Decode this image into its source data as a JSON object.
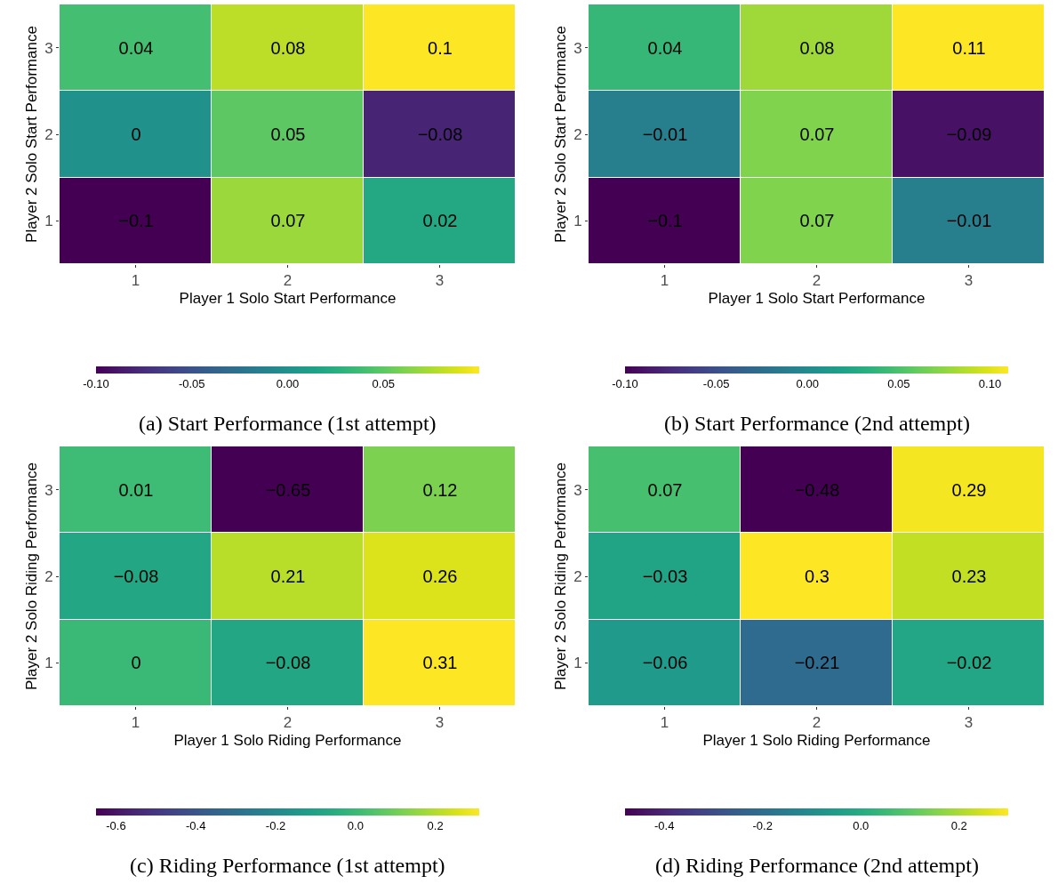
{
  "chart_data": [
    {
      "type": "heatmap",
      "xlabel": "Player 1 Solo Start Performance",
      "ylabel": "Player 2 Solo Start Performance",
      "categories": [
        "1",
        "2",
        "3"
      ],
      "y_categories": [
        "3",
        "2",
        "1"
      ],
      "cells": [
        [
          0.04,
          0.08,
          0.1
        ],
        [
          0,
          0.05,
          -0.08
        ],
        [
          -0.1,
          0.07,
          0.02
        ]
      ],
      "data_labels": true,
      "clim": [
        -0.1,
        0.1
      ],
      "cticks": [
        {
          "value": -0.1,
          "label": "-0.10"
        },
        {
          "value": -0.05,
          "label": "-0.05"
        },
        {
          "value": 0,
          "label": "0.00"
        },
        {
          "value": 0.05,
          "label": "0.05"
        }
      ],
      "grid": false,
      "annotations": [
        "(a) Start Performance (1st attempt)"
      ]
    },
    {
      "type": "heatmap",
      "xlabel": "Player 1 Solo Start Performance",
      "ylabel": "Player 2 Solo Start Performance",
      "categories": [
        "1",
        "2",
        "3"
      ],
      "y_categories": [
        "3",
        "2",
        "1"
      ],
      "cells": [
        [
          0.04,
          0.08,
          0.11
        ],
        [
          -0.01,
          0.07,
          -0.09
        ],
        [
          -0.1,
          0.07,
          -0.01
        ]
      ],
      "data_labels": true,
      "clim": [
        -0.1,
        0.11
      ],
      "cticks": [
        {
          "value": -0.1,
          "label": "-0.10"
        },
        {
          "value": -0.05,
          "label": "-0.05"
        },
        {
          "value": 0,
          "label": "0.00"
        },
        {
          "value": 0.05,
          "label": "0.05"
        },
        {
          "value": 0.1,
          "label": "0.10"
        }
      ],
      "grid": false,
      "annotations": [
        "(b) Start Performance (2nd attempt)"
      ]
    },
    {
      "type": "heatmap",
      "xlabel": "Player 1 Solo Riding Performance",
      "ylabel": "Player 2 Solo Riding Performance",
      "categories": [
        "1",
        "2",
        "3"
      ],
      "y_categories": [
        "3",
        "2",
        "1"
      ],
      "cells": [
        [
          0.01,
          -0.65,
          0.12
        ],
        [
          -0.08,
          0.21,
          0.26
        ],
        [
          0,
          -0.08,
          0.31
        ]
      ],
      "data_labels": true,
      "clim": [
        -0.65,
        0.31
      ],
      "cticks": [
        {
          "value": -0.6,
          "label": "-0.6"
        },
        {
          "value": -0.4,
          "label": "-0.4"
        },
        {
          "value": -0.2,
          "label": "-0.2"
        },
        {
          "value": 0,
          "label": "0.0"
        },
        {
          "value": 0.2,
          "label": "0.2"
        }
      ],
      "grid": false,
      "annotations": [
        "(c) Riding Performance (1st attempt)"
      ]
    },
    {
      "type": "heatmap",
      "xlabel": "Player 1 Solo Riding Performance",
      "ylabel": "Player 2 Solo Riding Performance",
      "categories": [
        "1",
        "2",
        "3"
      ],
      "y_categories": [
        "3",
        "2",
        "1"
      ],
      "cells": [
        [
          0.07,
          -0.48,
          0.29
        ],
        [
          -0.03,
          0.3,
          0.23
        ],
        [
          -0.06,
          -0.21,
          -0.02
        ]
      ],
      "data_labels": true,
      "clim": [
        -0.48,
        0.3
      ],
      "cticks": [
        {
          "value": -0.4,
          "label": "-0.4"
        },
        {
          "value": -0.2,
          "label": "-0.2"
        },
        {
          "value": 0,
          "label": "0.0"
        },
        {
          "value": 0.2,
          "label": "0.2"
        }
      ],
      "grid": false,
      "annotations": [
        "(d) Riding Performance (2nd attempt)"
      ]
    }
  ]
}
